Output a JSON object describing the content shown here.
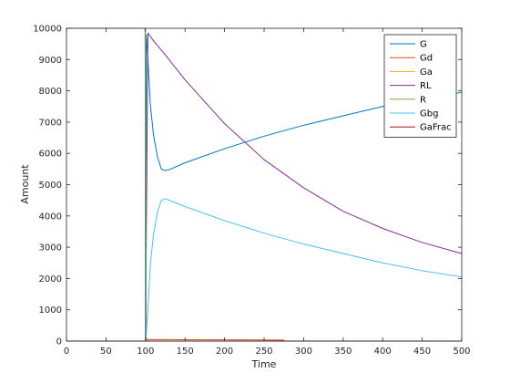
{
  "chart_data": {
    "type": "line",
    "title": "",
    "xlabel": "Time",
    "ylabel": "Amount",
    "xlim": [
      0,
      500
    ],
    "ylim": [
      0,
      10000
    ],
    "xticks": [
      0,
      50,
      100,
      150,
      200,
      250,
      300,
      350,
      400,
      450,
      500
    ],
    "yticks": [
      0,
      1000,
      2000,
      3000,
      4000,
      5000,
      6000,
      7000,
      8000,
      9000,
      10000
    ],
    "grid": false,
    "legend_position": "top-right",
    "series": [
      {
        "name": "G",
        "color": "#0072BD",
        "x": [
          0,
          99.5,
          100,
          101,
          103,
          106,
          110,
          115,
          120,
          125,
          130,
          150,
          200,
          250,
          300,
          350,
          400,
          450,
          500
        ],
        "y": [
          10000,
          10000,
          0,
          9800,
          9000,
          7600,
          6600,
          5900,
          5500,
          5450,
          5480,
          5700,
          6150,
          6550,
          6900,
          7200,
          7500,
          7750,
          7950
        ]
      },
      {
        "name": "Gd",
        "color": "#D95319",
        "x": [
          0,
          99.5,
          100,
          102,
          150,
          200,
          250,
          275,
          276,
          500
        ],
        "y": [
          0,
          0,
          10,
          50,
          45,
          40,
          35,
          30,
          0,
          0
        ]
      },
      {
        "name": "Ga",
        "color": "#EDB120",
        "x": [
          0,
          500
        ],
        "y": [
          0,
          0
        ]
      },
      {
        "name": "RL",
        "color": "#7E2F8E",
        "x": [
          0,
          99.5,
          100,
          103,
          110,
          125,
          150,
          200,
          250,
          300,
          350,
          400,
          450,
          500
        ],
        "y": [
          0,
          0,
          10,
          9850,
          9600,
          9150,
          8350,
          6950,
          5800,
          4900,
          4150,
          3600,
          3150,
          2800
        ]
      },
      {
        "name": "R",
        "color": "#77AC30",
        "x": [
          0,
          99.5,
          100,
          100.5,
          101,
          500
        ],
        "y": [
          10000,
          10000,
          6300,
          3700,
          0,
          0
        ]
      },
      {
        "name": "Gbg",
        "color": "#4DBEEE",
        "x": [
          0,
          99.5,
          100,
          101,
          103,
          106,
          110,
          115,
          120,
          125,
          130,
          150,
          200,
          250,
          300,
          350,
          400,
          450,
          500
        ],
        "y": [
          0,
          0,
          10,
          200,
          1000,
          2400,
          3400,
          4100,
          4500,
          4550,
          4500,
          4300,
          3850,
          3450,
          3100,
          2800,
          2500,
          2250,
          2050
        ]
      },
      {
        "name": "GaFrac",
        "color": "#A2142F",
        "x": [
          0,
          500
        ],
        "y": [
          0,
          0
        ]
      }
    ]
  }
}
